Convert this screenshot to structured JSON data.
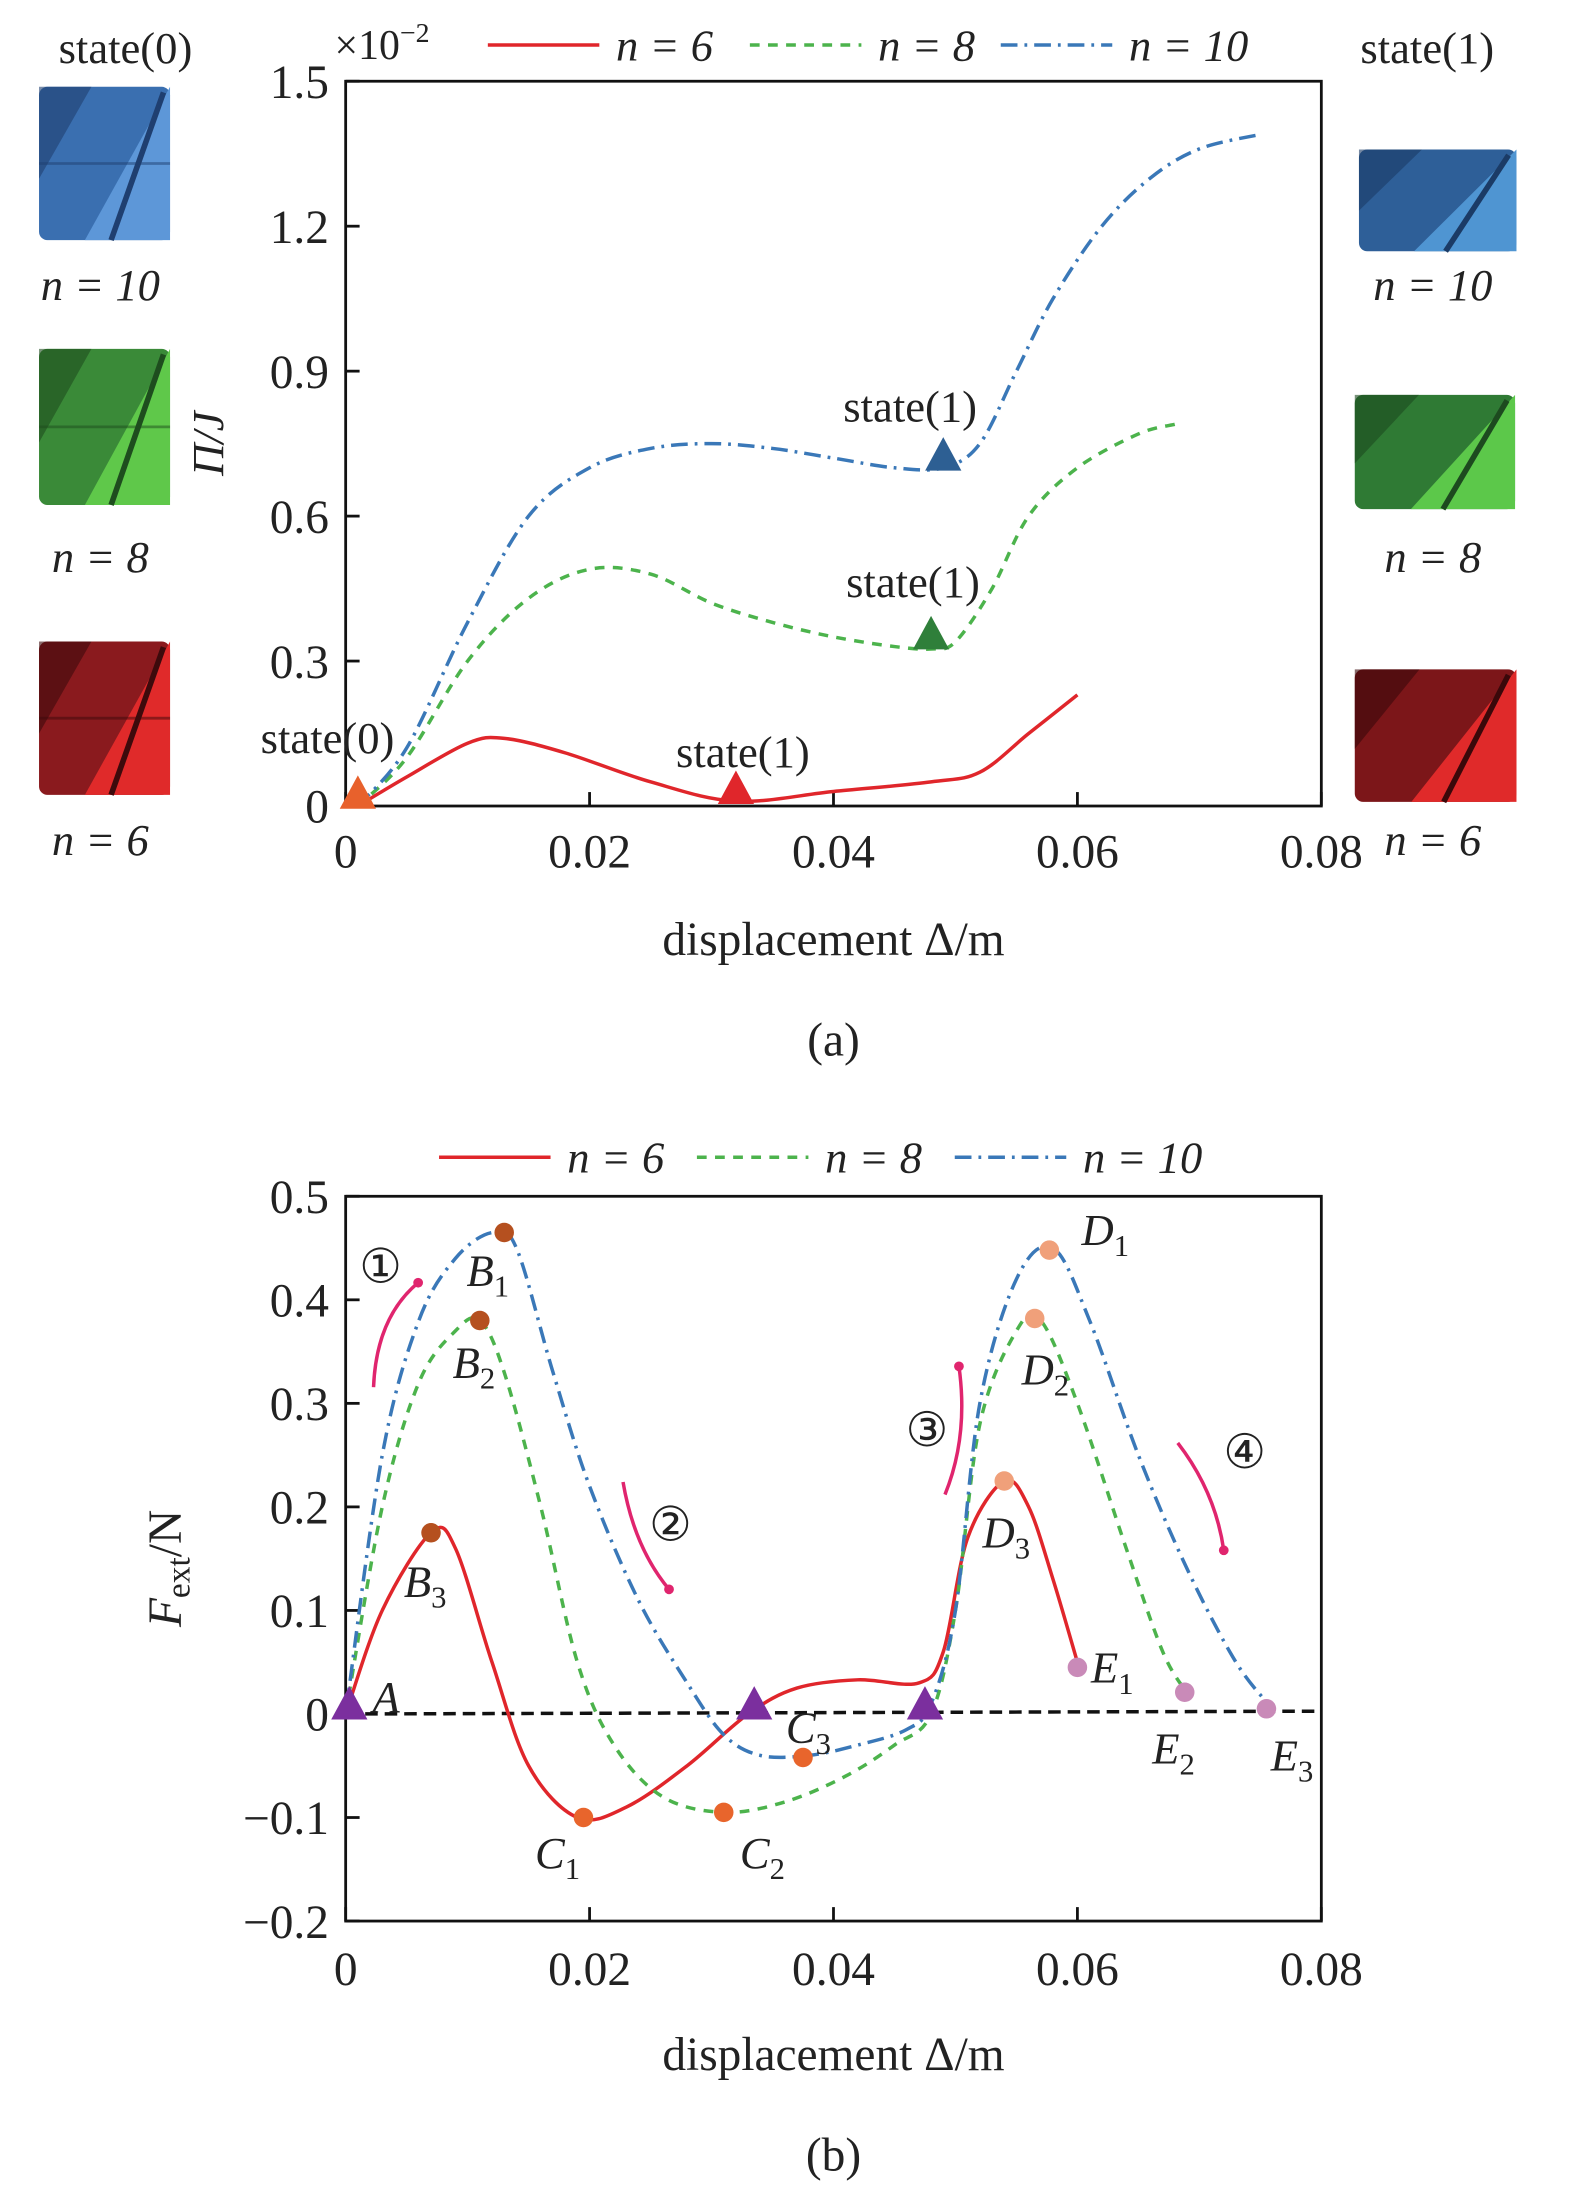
{
  "colors": {
    "n6": "#e0262b",
    "n8": "#4cb34c",
    "n10": "#3a78b8",
    "arrow": "#e0256e",
    "triangle_A": "#7b2f9e",
    "zero_line": "#111111"
  },
  "chart_data": [
    {
      "type": "line",
      "panel_label": "(a)",
      "xlabel": "displacement Δ/m",
      "ylabel": "Π/J",
      "y_multiplier": "×10",
      "y_multiplier_exp": "−2",
      "xlim": [
        0,
        0.08
      ],
      "ylim": [
        0,
        1.5
      ],
      "x_ticks": [
        "0",
        "0.02",
        "0.04",
        "0.06",
        "0.08"
      ],
      "y_ticks": [
        "0",
        "0.3",
        "0.6",
        "0.9",
        "1.2",
        "1.5"
      ],
      "grid": false,
      "legend_position": "top",
      "series": [
        {
          "name": "n = 6",
          "style": "solid",
          "points": [
            [
              0.001,
              0
            ],
            [
              0.005,
              0.06
            ],
            [
              0.01,
              0.13
            ],
            [
              0.013,
              0.14
            ],
            [
              0.018,
              0.11
            ],
            [
              0.025,
              0.05
            ],
            [
              0.032,
              0.01
            ],
            [
              0.04,
              0.03
            ],
            [
              0.048,
              0.05
            ],
            [
              0.052,
              0.07
            ],
            [
              0.056,
              0.15
            ],
            [
              0.06,
              0.23
            ]
          ]
        },
        {
          "name": "n = 8",
          "style": "dashed",
          "points": [
            [
              0.001,
              0
            ],
            [
              0.005,
              0.1
            ],
            [
              0.01,
              0.3
            ],
            [
              0.015,
              0.43
            ],
            [
              0.02,
              0.49
            ],
            [
              0.025,
              0.48
            ],
            [
              0.03,
              0.42
            ],
            [
              0.035,
              0.38
            ],
            [
              0.04,
              0.35
            ],
            [
              0.045,
              0.33
            ],
            [
              0.048,
              0.325
            ],
            [
              0.05,
              0.34
            ],
            [
              0.053,
              0.45
            ],
            [
              0.056,
              0.6
            ],
            [
              0.06,
              0.7
            ],
            [
              0.065,
              0.77
            ],
            [
              0.068,
              0.79
            ]
          ]
        },
        {
          "name": "n = 10",
          "style": "dashdot",
          "points": [
            [
              0.001,
              0
            ],
            [
              0.005,
              0.12
            ],
            [
              0.01,
              0.38
            ],
            [
              0.015,
              0.6
            ],
            [
              0.02,
              0.7
            ],
            [
              0.025,
              0.74
            ],
            [
              0.03,
              0.75
            ],
            [
              0.035,
              0.74
            ],
            [
              0.04,
              0.72
            ],
            [
              0.045,
              0.7
            ],
            [
              0.049,
              0.7
            ],
            [
              0.052,
              0.75
            ],
            [
              0.055,
              0.9
            ],
            [
              0.058,
              1.05
            ],
            [
              0.062,
              1.2
            ],
            [
              0.066,
              1.3
            ],
            [
              0.07,
              1.36
            ],
            [
              0.075,
              1.39
            ]
          ]
        }
      ],
      "markers": [
        {
          "label": "state(0)",
          "x": 0.001,
          "y": 0,
          "color": "#e8612c"
        },
        {
          "label": "state(1)",
          "x": 0.032,
          "y": 0.01,
          "color": "#e0262b"
        },
        {
          "label": "state(1)",
          "x": 0.048,
          "y": 0.33,
          "color": "#2f7f3a"
        },
        {
          "label": "state(1)",
          "x": 0.049,
          "y": 0.7,
          "color": "#2d5f93"
        }
      ],
      "side_labels": {
        "left_title": "state(0)",
        "right_title": "state(1)",
        "left": [
          "n = 10",
          "n = 8",
          "n = 6"
        ],
        "right": [
          "n = 10",
          "n = 8",
          "n = 6"
        ]
      }
    },
    {
      "type": "line",
      "panel_label": "(b)",
      "xlabel": "displacement Δ/m",
      "ylabel_main": "F",
      "ylabel_sub": "ext",
      "ylabel_unit": "/N",
      "xlim": [
        0,
        0.08
      ],
      "ylim": [
        -0.2,
        0.5
      ],
      "x_ticks": [
        "0",
        "0.02",
        "0.04",
        "0.06",
        "0.08"
      ],
      "y_ticks": [
        "−0.2",
        "−0.1",
        "0",
        "0.1",
        "0.2",
        "0.3",
        "0.4",
        "0.5"
      ],
      "grid": false,
      "legend_position": "top",
      "series": [
        {
          "name": "n = 6",
          "style": "solid",
          "points": [
            [
              0,
              0
            ],
            [
              0.003,
              0.1
            ],
            [
              0.007,
              0.175
            ],
            [
              0.009,
              0.16
            ],
            [
              0.012,
              0.05
            ],
            [
              0.015,
              -0.05
            ],
            [
              0.019,
              -0.1
            ],
            [
              0.023,
              -0.09
            ],
            [
              0.028,
              -0.05
            ],
            [
              0.033,
              0
            ],
            [
              0.037,
              0.025
            ],
            [
              0.042,
              0.033
            ],
            [
              0.047,
              0.03
            ],
            [
              0.049,
              0.06
            ],
            [
              0.051,
              0.17
            ],
            [
              0.054,
              0.225
            ],
            [
              0.056,
              0.2
            ],
            [
              0.058,
              0.13
            ],
            [
              0.06,
              0.05
            ]
          ]
        },
        {
          "name": "n = 8",
          "style": "dashed",
          "points": [
            [
              0,
              0
            ],
            [
              0.003,
              0.2
            ],
            [
              0.006,
              0.32
            ],
            [
              0.009,
              0.37
            ],
            [
              0.011,
              0.38
            ],
            [
              0.013,
              0.33
            ],
            [
              0.016,
              0.2
            ],
            [
              0.019,
              0.05
            ],
            [
              0.022,
              -0.03
            ],
            [
              0.026,
              -0.08
            ],
            [
              0.031,
              -0.095
            ],
            [
              0.036,
              -0.085
            ],
            [
              0.041,
              -0.06
            ],
            [
              0.045,
              -0.03
            ],
            [
              0.048,
              0
            ],
            [
              0.05,
              0.1
            ],
            [
              0.052,
              0.28
            ],
            [
              0.055,
              0.37
            ],
            [
              0.057,
              0.38
            ],
            [
              0.06,
              0.3
            ],
            [
              0.064,
              0.16
            ],
            [
              0.067,
              0.06
            ],
            [
              0.069,
              0.02
            ]
          ]
        },
        {
          "name": "n = 10",
          "style": "dashdot",
          "points": [
            [
              0,
              0
            ],
            [
              0.003,
              0.25
            ],
            [
              0.006,
              0.38
            ],
            [
              0.009,
              0.44
            ],
            [
              0.012,
              0.465
            ],
            [
              0.014,
              0.45
            ],
            [
              0.017,
              0.33
            ],
            [
              0.02,
              0.22
            ],
            [
              0.024,
              0.11
            ],
            [
              0.028,
              0.03
            ],
            [
              0.031,
              -0.02
            ],
            [
              0.034,
              -0.04
            ],
            [
              0.038,
              -0.04
            ],
            [
              0.042,
              -0.03
            ],
            [
              0.046,
              -0.015
            ],
            [
              0.048,
              0.01
            ],
            [
              0.05,
              0.1
            ],
            [
              0.052,
              0.3
            ],
            [
              0.055,
              0.42
            ],
            [
              0.058,
              0.45
            ],
            [
              0.061,
              0.38
            ],
            [
              0.065,
              0.25
            ],
            [
              0.069,
              0.14
            ],
            [
              0.073,
              0.05
            ],
            [
              0.076,
              0.005
            ]
          ]
        }
      ],
      "points": [
        {
          "letter": "B",
          "sub": "1",
          "x": 0.007,
          "y": 0.175,
          "color": "#b5501f"
        },
        {
          "letter": "B",
          "sub": "2",
          "x": 0.011,
          "y": 0.38,
          "color": "#b5501f"
        },
        {
          "letter": "B",
          "sub": "3",
          "x": 0.013,
          "y": 0.465,
          "color": "#b5501f"
        },
        {
          "letter": "C",
          "sub": "1",
          "x": 0.0195,
          "y": -0.1,
          "color": "#e8652c"
        },
        {
          "letter": "C",
          "sub": "2",
          "x": 0.031,
          "y": -0.095,
          "color": "#e8652c"
        },
        {
          "letter": "C",
          "sub": "3",
          "x": 0.0375,
          "y": -0.042,
          "color": "#e8652c"
        },
        {
          "letter": "D",
          "sub": "1",
          "x": 0.054,
          "y": 0.225,
          "color": "#f0a07a"
        },
        {
          "letter": "D",
          "sub": "2",
          "x": 0.0565,
          "y": 0.382,
          "color": "#f0a07a"
        },
        {
          "letter": "D",
          "sub": "3",
          "x": 0.0577,
          "y": 0.448,
          "color": "#f0a07a"
        },
        {
          "letter": "E",
          "sub": "1",
          "x": 0.06,
          "y": 0.045,
          "color": "#c98ab8"
        },
        {
          "letter": "E",
          "sub": "2",
          "x": 0.0688,
          "y": 0.021,
          "color": "#c98ab8"
        },
        {
          "letter": "E",
          "sub": "3",
          "x": 0.0755,
          "y": 0.005,
          "color": "#c98ab8"
        }
      ],
      "triangles": [
        {
          "label": "A",
          "x": 0.0003,
          "y": 0
        },
        {
          "label": "",
          "x": 0.0335,
          "y": 0
        },
        {
          "label": "",
          "x": 0.0475,
          "y": 0
        }
      ],
      "stages": [
        "①",
        "②",
        "③",
        "④"
      ]
    }
  ]
}
